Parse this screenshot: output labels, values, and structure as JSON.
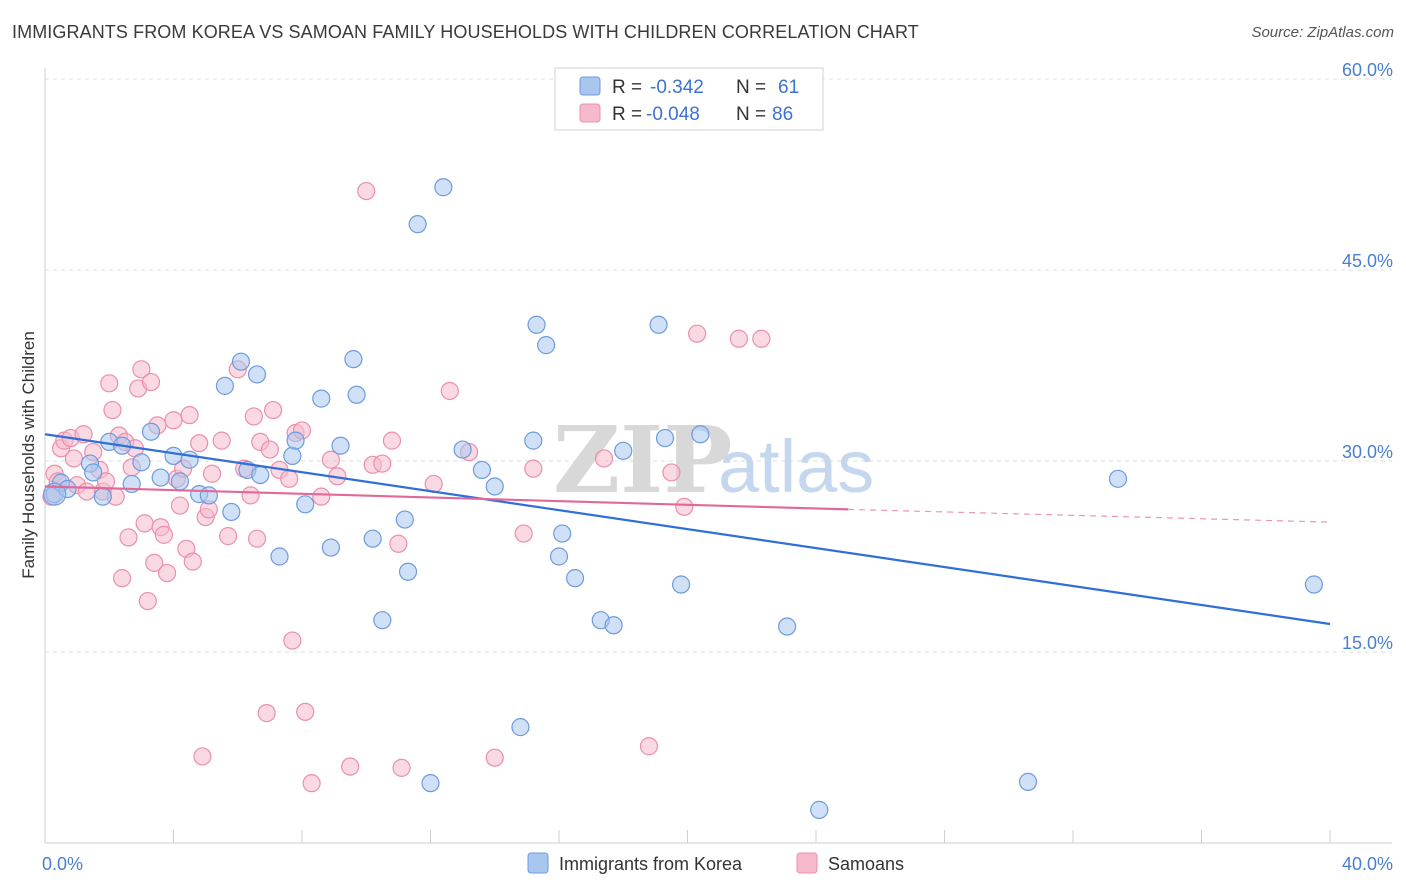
{
  "title": "IMMIGRANTS FROM KOREA VS SAMOAN FAMILY HOUSEHOLDS WITH CHILDREN CORRELATION CHART",
  "source": "Source: ZipAtlas.com",
  "watermark": {
    "zip": "ZIP",
    "atlas": "atlas"
  },
  "colors": {
    "blue_fill": "#a9c6ef",
    "blue_stroke": "#6d9be0",
    "blue_line": "#2f6fd6",
    "pink_fill": "#f6b9cc",
    "pink_stroke": "#ec8fac",
    "pink_line": "#e0699a",
    "grid": "#dcdcdc",
    "tick_text": "#4a7fd0"
  },
  "legend": {
    "series1": {
      "r_label": "R =",
      "r_value": "-0.342",
      "n_label": "N =",
      "n_value": "61"
    },
    "series2": {
      "r_label": "R =",
      "r_value": "-0.048",
      "n_label": "N =",
      "n_value": "86"
    }
  },
  "chart_data": {
    "type": "scatter",
    "title": "IMMIGRANTS FROM KOREA VS SAMOAN FAMILY HOUSEHOLDS WITH CHILDREN CORRELATION CHART",
    "xlabel": "",
    "ylabel": "Family Households with Children",
    "xlim": [
      0,
      40
    ],
    "ylim": [
      0,
      60
    ],
    "x_tick_labels": [
      "0.0%",
      "40.0%"
    ],
    "y_ticks": [
      15,
      30,
      45,
      60
    ],
    "y_tick_labels": [
      "15.0%",
      "30.0%",
      "45.0%",
      "60.0%"
    ],
    "series": [
      {
        "name": "Immigrants from Korea",
        "color": "#a9c6ef",
        "trend": {
          "x": [
            0,
            40
          ],
          "y": [
            32.1,
            17.2
          ]
        },
        "points": [
          [
            0.3,
            27.4
          ],
          [
            0.5,
            28.3
          ],
          [
            0.7,
            27.8
          ],
          [
            1.4,
            29.8
          ],
          [
            1.5,
            29.1
          ],
          [
            1.8,
            27.2
          ],
          [
            2.0,
            31.5
          ],
          [
            2.4,
            31.2
          ],
          [
            2.7,
            28.2
          ],
          [
            3.0,
            29.9
          ],
          [
            3.3,
            32.3
          ],
          [
            3.6,
            28.7
          ],
          [
            4.0,
            30.4
          ],
          [
            4.2,
            28.4
          ],
          [
            4.5,
            30.1
          ],
          [
            4.8,
            27.4
          ],
          [
            5.1,
            27.3
          ],
          [
            5.6,
            35.9
          ],
          [
            5.8,
            26.0
          ],
          [
            6.1,
            37.8
          ],
          [
            6.3,
            29.3
          ],
          [
            6.6,
            36.8
          ],
          [
            6.7,
            28.9
          ],
          [
            7.3,
            22.5
          ],
          [
            7.7,
            30.4
          ],
          [
            7.8,
            31.6
          ],
          [
            8.1,
            26.6
          ],
          [
            8.6,
            34.9
          ],
          [
            8.9,
            23.2
          ],
          [
            9.2,
            31.2
          ],
          [
            9.6,
            38.0
          ],
          [
            9.7,
            35.2
          ],
          [
            10.2,
            23.9
          ],
          [
            10.5,
            17.5
          ],
          [
            11.2,
            25.4
          ],
          [
            11.3,
            21.3
          ],
          [
            11.6,
            48.6
          ],
          [
            12.0,
            4.7
          ],
          [
            12.4,
            51.5
          ],
          [
            13.0,
            30.9
          ],
          [
            13.6,
            29.3
          ],
          [
            14.0,
            28.0
          ],
          [
            14.8,
            9.1
          ],
          [
            15.2,
            31.6
          ],
          [
            15.3,
            40.7
          ],
          [
            15.6,
            39.1
          ],
          [
            16.0,
            22.5
          ],
          [
            16.1,
            24.3
          ],
          [
            16.5,
            20.8
          ],
          [
            17.3,
            17.5
          ],
          [
            17.7,
            17.1
          ],
          [
            18.0,
            30.8
          ],
          [
            19.1,
            40.7
          ],
          [
            19.3,
            31.8
          ],
          [
            19.8,
            20.3
          ],
          [
            20.4,
            32.1
          ],
          [
            23.1,
            17.0
          ],
          [
            24.1,
            2.6
          ],
          [
            30.6,
            4.8
          ],
          [
            33.4,
            28.6
          ],
          [
            39.5,
            20.3
          ]
        ]
      },
      {
        "name": "Samoans",
        "color": "#f6b9cc",
        "trend": {
          "x": [
            0,
            25
          ],
          "y": [
            28.0,
            26.2
          ]
        },
        "trend_dashed": {
          "x": [
            25,
            40
          ],
          "y": [
            26.2,
            25.2
          ]
        },
        "points": [
          [
            0.2,
            27.2
          ],
          [
            0.3,
            29.0
          ],
          [
            0.4,
            28.4
          ],
          [
            0.5,
            31.0
          ],
          [
            0.6,
            31.6
          ],
          [
            0.8,
            31.8
          ],
          [
            0.9,
            30.2
          ],
          [
            1.0,
            28.1
          ],
          [
            1.2,
            32.1
          ],
          [
            1.3,
            27.6
          ],
          [
            1.5,
            30.7
          ],
          [
            1.7,
            29.3
          ],
          [
            1.8,
            27.6
          ],
          [
            1.9,
            28.4
          ],
          [
            2.0,
            36.1
          ],
          [
            2.1,
            34.0
          ],
          [
            2.2,
            27.2
          ],
          [
            2.3,
            32.0
          ],
          [
            2.4,
            20.8
          ],
          [
            2.5,
            31.5
          ],
          [
            2.6,
            24.0
          ],
          [
            2.7,
            29.5
          ],
          [
            2.8,
            31.0
          ],
          [
            2.9,
            35.7
          ],
          [
            3.0,
            37.2
          ],
          [
            3.1,
            25.1
          ],
          [
            3.2,
            19.0
          ],
          [
            3.3,
            36.2
          ],
          [
            3.4,
            22.0
          ],
          [
            3.5,
            32.8
          ],
          [
            3.6,
            24.8
          ],
          [
            3.7,
            24.2
          ],
          [
            3.8,
            21.2
          ],
          [
            4.0,
            33.2
          ],
          [
            4.1,
            28.6
          ],
          [
            4.2,
            26.5
          ],
          [
            4.3,
            29.4
          ],
          [
            4.4,
            23.1
          ],
          [
            4.5,
            33.6
          ],
          [
            4.6,
            22.1
          ],
          [
            4.8,
            31.4
          ],
          [
            4.9,
            6.8
          ],
          [
            5.0,
            25.6
          ],
          [
            5.1,
            26.2
          ],
          [
            5.2,
            29.0
          ],
          [
            5.5,
            31.6
          ],
          [
            5.7,
            24.1
          ],
          [
            6.0,
            37.2
          ],
          [
            6.2,
            29.4
          ],
          [
            6.5,
            33.5
          ],
          [
            6.6,
            23.9
          ],
          [
            6.7,
            31.5
          ],
          [
            6.9,
            10.2
          ],
          [
            7.0,
            30.9
          ],
          [
            7.1,
            34.0
          ],
          [
            7.3,
            29.3
          ],
          [
            7.6,
            28.6
          ],
          [
            7.7,
            15.9
          ],
          [
            7.8,
            32.2
          ],
          [
            8.0,
            32.4
          ],
          [
            8.1,
            10.3
          ],
          [
            8.3,
            4.7
          ],
          [
            8.6,
            27.2
          ],
          [
            8.9,
            30.1
          ],
          [
            9.1,
            28.8
          ],
          [
            9.5,
            6.0
          ],
          [
            10.0,
            51.2
          ],
          [
            10.2,
            29.7
          ],
          [
            10.5,
            29.8
          ],
          [
            10.8,
            31.6
          ],
          [
            11.0,
            23.5
          ],
          [
            11.1,
            5.9
          ],
          [
            12.1,
            28.2
          ],
          [
            12.6,
            35.5
          ],
          [
            13.2,
            30.7
          ],
          [
            14.0,
            6.7
          ],
          [
            14.9,
            24.3
          ],
          [
            17.4,
            30.2
          ],
          [
            18.8,
            7.6
          ],
          [
            19.5,
            29.1
          ],
          [
            19.9,
            26.4
          ],
          [
            20.3,
            40.0
          ],
          [
            21.6,
            39.6
          ],
          [
            22.3,
            39.6
          ],
          [
            15.2,
            29.4
          ],
          [
            6.4,
            27.3
          ]
        ]
      }
    ]
  }
}
